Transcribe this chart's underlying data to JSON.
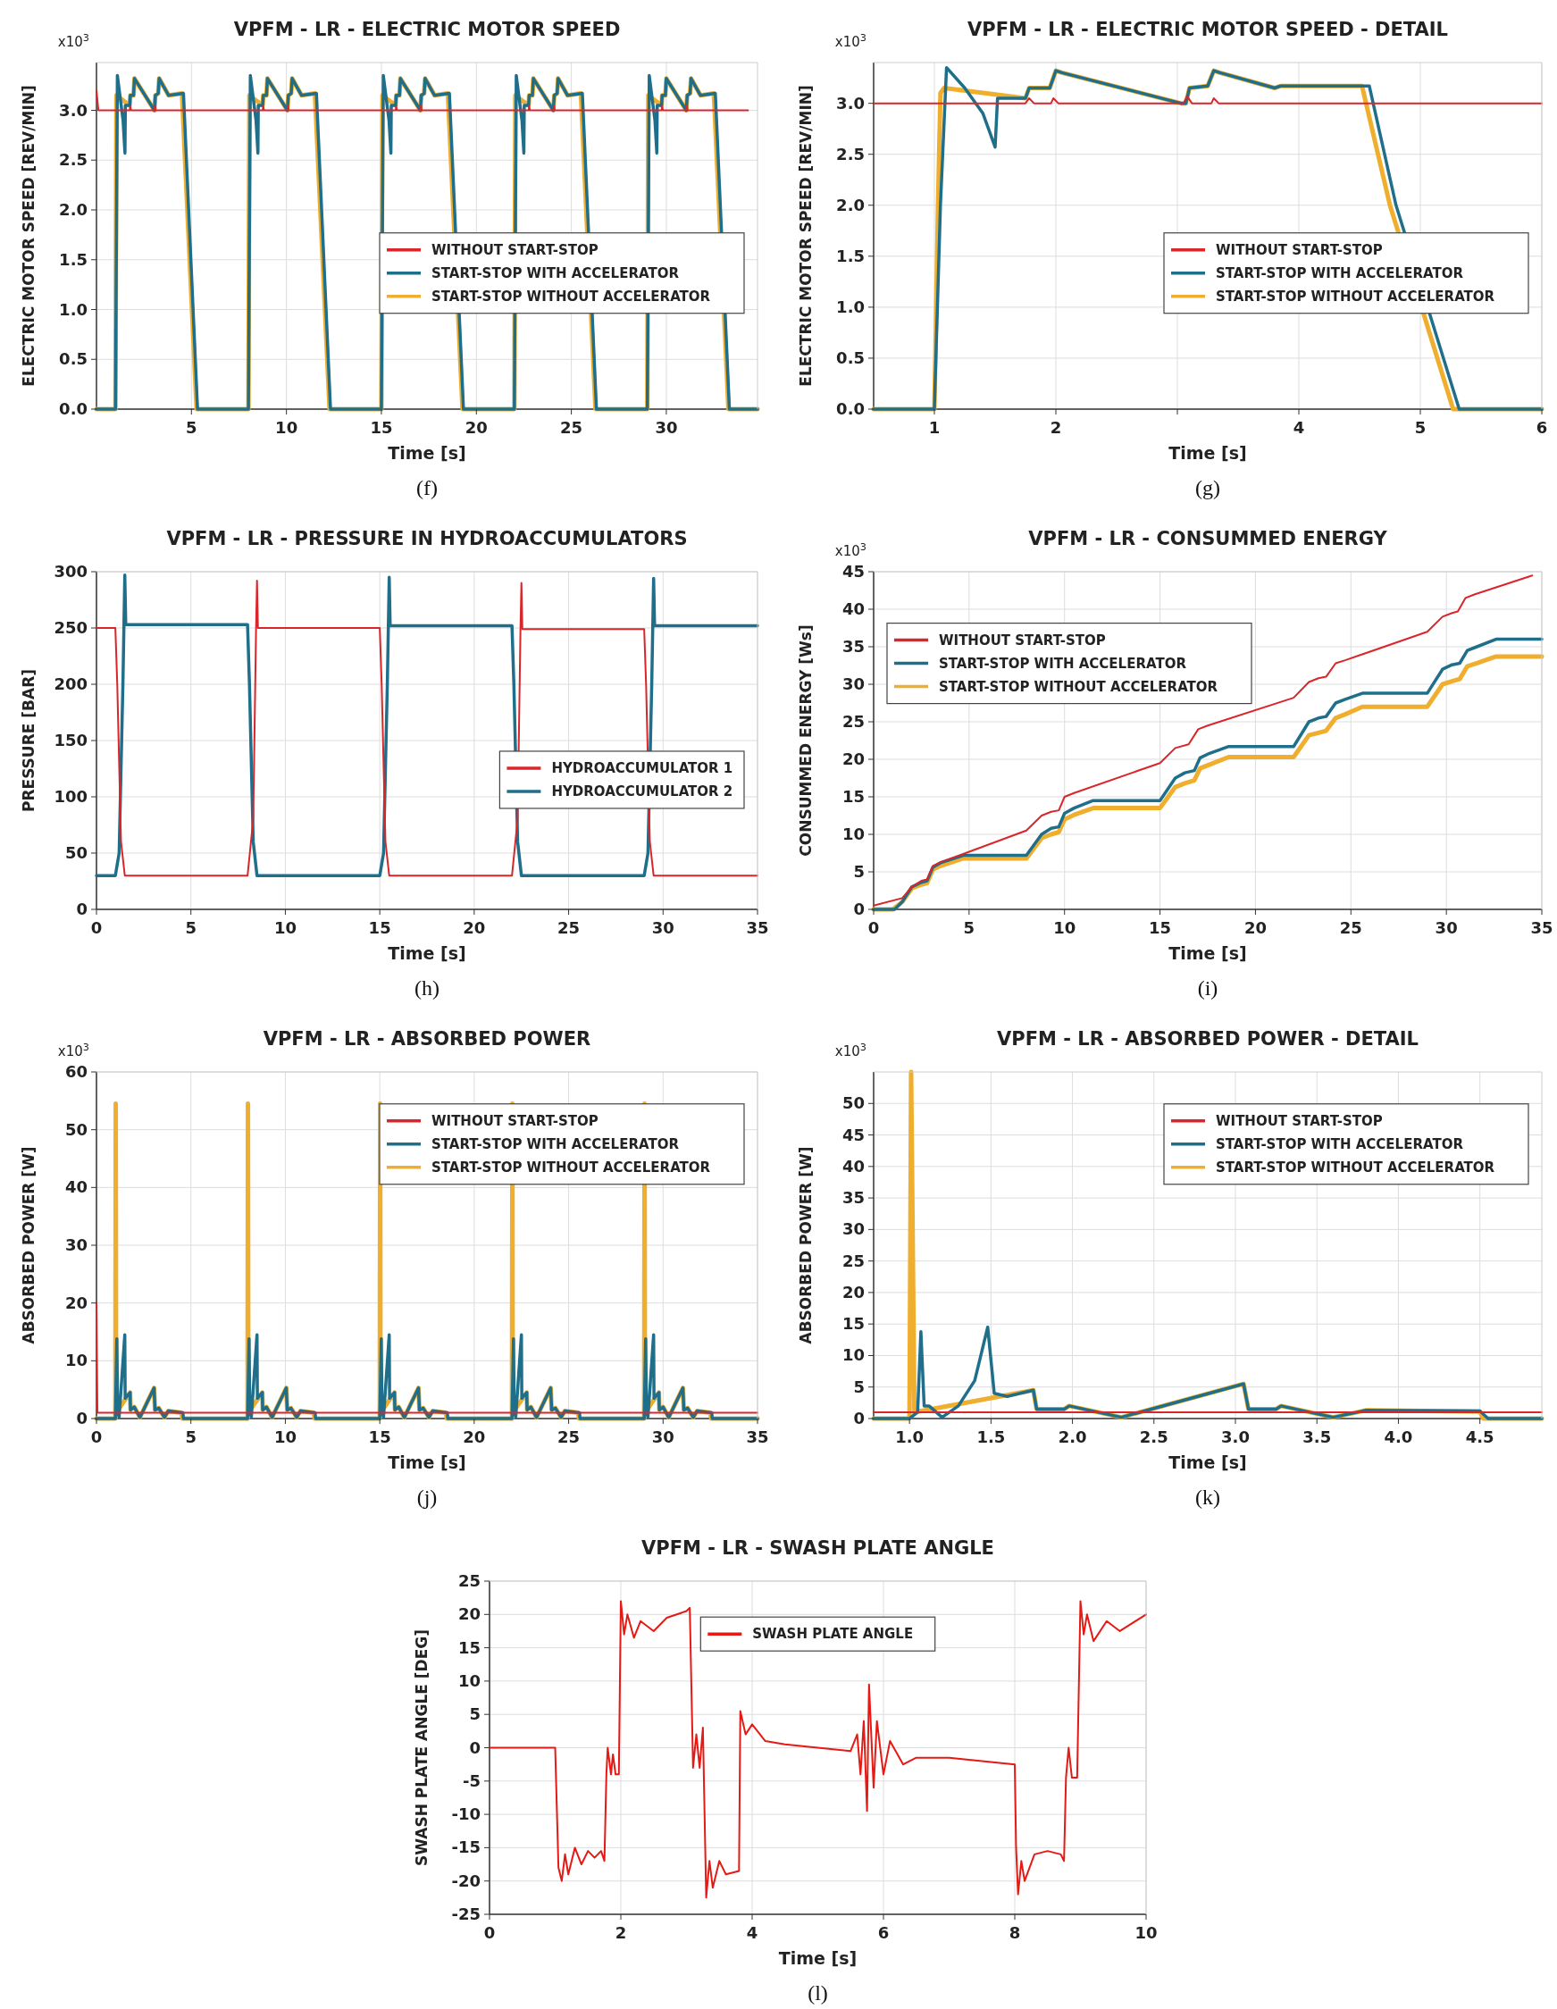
{
  "chart_data": [
    {
      "type": "line",
      "title": "VPFM - LR - ELECTRIC MOTOR SPEED",
      "xlabel": "Time [s]",
      "ylabel": "ELECTRIC MOTOR SPEED [REV/MIN]",
      "annotations": [
        "x10$^{3}$",
        "(f)"
      ],
      "xlim": [
        0,
        34.8
      ],
      "xticks": [
        5,
        10,
        15,
        20,
        25,
        30
      ],
      "ylim": [
        0,
        3.48
      ],
      "yticks": [
        {
          "value": 0,
          "label": "0.0"
        },
        {
          "value": 0.5,
          "label": "0.5"
        },
        {
          "value": 1,
          "label": "1.0"
        },
        {
          "value": 1.5,
          "label": "1.5"
        },
        {
          "value": 2,
          "label": "2.0"
        },
        {
          "value": 2.5,
          "label": "2.5"
        },
        {
          "value": 3,
          "label": "3.0"
        }
      ],
      "grid": true,
      "legend": "right",
      "series": [
        {
          "name": "WITHOUT START-STOP",
          "color": "#d9262b",
          "x": [
            0,
            0.1,
            1.75,
            1.78,
            1.82,
            3.05,
            3.08,
            3.12,
            8.75,
            8.78,
            8.82,
            10.05,
            10.08,
            10.12,
            15.75,
            15.78,
            15.82,
            17.05,
            17.08,
            17.12,
            22.75,
            22.78,
            22.82,
            24.05,
            24.08,
            24.12,
            29.75,
            29.78,
            29.82,
            31.05,
            31.08,
            31.12,
            34.3
          ],
          "values": [
            3.2,
            3,
            3,
            3.04,
            3,
            3,
            3.05,
            3,
            3,
            3.04,
            3,
            3,
            3.05,
            3,
            3,
            3.04,
            3,
            3,
            3.05,
            3,
            3,
            3.04,
            3,
            3,
            3.05,
            3,
            3,
            3.04,
            3,
            3,
            3.05,
            3,
            3
          ]
        },
        {
          "name": "START-STOP WITH ACCELERATOR",
          "color": "#1f6f8b",
          "x": [
            0,
            1,
            1.1,
            1.4,
            1.5,
            1.52,
            1.75,
            1.78,
            1.95,
            2,
            3.05,
            3.1,
            3.25,
            3.3,
            3.8,
            4.58,
            5.32,
            8,
            8.1,
            8.4,
            8.5,
            8.52,
            8.75,
            8.78,
            8.95,
            9,
            10.05,
            10.1,
            10.25,
            10.3,
            10.8,
            11.58,
            12.32,
            15,
            15.1,
            15.4,
            15.5,
            15.52,
            15.75,
            15.78,
            15.95,
            16,
            17.05,
            17.1,
            17.25,
            17.3,
            17.8,
            18.58,
            19.32,
            22,
            22.1,
            22.4,
            22.5,
            22.52,
            22.75,
            22.78,
            22.95,
            23,
            24.05,
            24.1,
            24.25,
            24.3,
            24.8,
            25.58,
            26.32,
            29,
            29.1,
            29.4,
            29.5,
            29.52,
            29.75,
            29.78,
            29.95,
            30,
            31.05,
            31.1,
            31.25,
            31.3,
            31.8,
            32.58,
            33.32,
            34.8
          ],
          "values": [
            0,
            0,
            3.35,
            2.9,
            2.57,
            3.05,
            3.05,
            3.15,
            3.15,
            3.32,
            3,
            3.15,
            3.17,
            3.32,
            3.15,
            3.17,
            0,
            0,
            3.35,
            2.9,
            2.57,
            3.05,
            3.05,
            3.15,
            3.15,
            3.32,
            3,
            3.15,
            3.17,
            3.32,
            3.15,
            3.17,
            0,
            0,
            3.35,
            2.9,
            2.57,
            3.05,
            3.05,
            3.15,
            3.15,
            3.32,
            3,
            3.15,
            3.17,
            3.32,
            3.15,
            3.17,
            0,
            0,
            3.35,
            2.9,
            2.57,
            3.05,
            3.05,
            3.15,
            3.15,
            3.32,
            3,
            3.15,
            3.17,
            3.32,
            3.15,
            3.17,
            0,
            0,
            3.35,
            2.9,
            2.57,
            3.05,
            3.05,
            3.15,
            3.15,
            3.32,
            3,
            3.15,
            3.17,
            3.32,
            3.15,
            3.17,
            0,
            0
          ]
        },
        {
          "name": "START-STOP WITHOUT ACCELERATOR",
          "color": "#f0ae2e",
          "x": [
            0,
            1,
            1.05,
            1.75,
            1.78,
            1.95,
            2,
            3.05,
            3.1,
            3.25,
            3.3,
            3.8,
            4.5,
            5.27,
            8,
            8.05,
            8.75,
            8.78,
            8.95,
            9,
            10.05,
            10.1,
            10.25,
            10.3,
            10.8,
            11.5,
            12.27,
            15,
            15.05,
            15.75,
            15.78,
            15.95,
            16,
            17.05,
            17.1,
            17.25,
            17.3,
            17.8,
            18.5,
            19.27,
            22,
            22.05,
            22.75,
            22.78,
            22.95,
            23,
            24.05,
            24.1,
            24.25,
            24.3,
            24.8,
            25.5,
            26.27,
            29,
            29.05,
            29.75,
            29.78,
            29.95,
            30,
            31.05,
            31.1,
            31.25,
            31.3,
            31.8,
            32.5,
            33.27,
            34.8
          ],
          "values": [
            0,
            0,
            3.15,
            3.05,
            3.15,
            3.15,
            3.32,
            3,
            3.15,
            3.17,
            3.32,
            3.15,
            3.17,
            0,
            0,
            3.15,
            3.05,
            3.15,
            3.15,
            3.32,
            3,
            3.15,
            3.17,
            3.32,
            3.15,
            3.17,
            0,
            0,
            3.15,
            3.05,
            3.15,
            3.15,
            3.32,
            3,
            3.15,
            3.17,
            3.32,
            3.15,
            3.17,
            0,
            0,
            3.15,
            3.05,
            3.15,
            3.15,
            3.32,
            3,
            3.15,
            3.17,
            3.32,
            3.15,
            3.17,
            0,
            0,
            3.15,
            3.05,
            3.15,
            3.15,
            3.32,
            3,
            3.15,
            3.17,
            3.32,
            3.15,
            3.17,
            0,
            0
          ]
        }
      ]
    },
    {
      "type": "line",
      "title": "VPFM - LR - ELECTRIC MOTOR SPEED - DETAIL",
      "xlabel": "Time [s]",
      "ylabel": "ELECTRIC MOTOR SPEED [REV/MIN]",
      "annotations": [
        "x10$^{3}$",
        "(g)"
      ],
      "xlim": [
        0.5,
        6
      ],
      "xticks": [
        1,
        2,
        {
          "value": 3,
          "label": null
        },
        4,
        5,
        6
      ],
      "ylim": [
        0,
        3.4
      ],
      "yticks": [
        {
          "value": 0,
          "label": "0.0"
        },
        {
          "value": 0.5,
          "label": "0.5"
        },
        {
          "value": 1,
          "label": "1.0"
        },
        {
          "value": 1.5,
          "label": "1.5"
        },
        {
          "value": 2,
          "label": "2.0"
        },
        {
          "value": 2.5,
          "label": "2.5"
        },
        {
          "value": 3,
          "label": "3.0"
        }
      ],
      "grid": true,
      "legend": "right",
      "series": [
        {
          "name": "WITHOUT START-STOP",
          "color": "#d9262b",
          "x": [
            0.5,
            1.75,
            1.78,
            1.82,
            1.96,
            1.98,
            2.02,
            3.05,
            3.08,
            3.12,
            3.28,
            3.3,
            3.34,
            6
          ],
          "values": [
            3,
            3,
            3.05,
            3,
            3,
            3.05,
            3,
            3,
            3.07,
            3,
            3,
            3.05,
            3,
            3
          ]
        },
        {
          "name": "START-STOP WITH ACCELERATOR",
          "color": "#1f6f8b",
          "x": [
            0.5,
            1,
            1.05,
            1.1,
            1.25,
            1.4,
            1.5,
            1.52,
            1.75,
            1.78,
            1.95,
            2,
            2.05,
            3.03,
            3.07,
            3.1,
            3.25,
            3.3,
            3.35,
            3.8,
            3.85,
            4.58,
            4.8,
            5.32,
            6
          ],
          "values": [
            0,
            0,
            2,
            3.35,
            3.15,
            2.9,
            2.57,
            3.05,
            3.05,
            3.15,
            3.15,
            3.32,
            3.3,
            3,
            3,
            3.15,
            3.17,
            3.32,
            3.3,
            3.15,
            3.17,
            3.17,
            2,
            0,
            0
          ]
        },
        {
          "name": "START-STOP WITHOUT ACCELERATOR",
          "color": "#f0ae2e",
          "x": [
            0.5,
            1,
            1.03,
            1.05,
            1.08,
            1.75,
            1.78,
            1.95,
            2,
            2.05,
            3.03,
            3.07,
            3.1,
            3.25,
            3.3,
            3.35,
            3.8,
            3.85,
            4.52,
            4.75,
            5.27,
            6
          ],
          "values": [
            0,
            0,
            2,
            3.1,
            3.15,
            3.05,
            3.15,
            3.15,
            3.32,
            3.3,
            3,
            3,
            3.15,
            3.17,
            3.32,
            3.3,
            3.15,
            3.17,
            3.17,
            2,
            0,
            0
          ]
        }
      ]
    },
    {
      "type": "line",
      "title": "VPFM - LR - PRESSURE IN HYDROACCUMULATORS",
      "xlabel": "Time [s]",
      "ylabel": "PRESSURE [BAR]",
      "annotations": [
        "(h)"
      ],
      "xlim": [
        0,
        35
      ],
      "xticks": [
        0,
        5,
        10,
        15,
        20,
        25,
        30,
        35
      ],
      "ylim": [
        0,
        300
      ],
      "yticks": [
        0,
        50,
        100,
        150,
        200,
        250,
        300
      ],
      "grid": true,
      "legend": "right",
      "series": [
        {
          "name": "HYDROACCUMULATOR 1",
          "color": "#d9262b",
          "x": [
            0,
            1,
            1.1,
            1.3,
            1.5,
            8,
            8.3,
            8.45,
            8.5,
            8.55,
            15,
            15.1,
            15.3,
            15.5,
            22,
            22.3,
            22.45,
            22.5,
            22.55,
            29,
            29.1,
            29.3,
            29.5,
            35
          ],
          "values": [
            250,
            250,
            200,
            60,
            30,
            30,
            80,
            250,
            292,
            250,
            250,
            200,
            60,
            30,
            30,
            80,
            249,
            290,
            249,
            249,
            200,
            60,
            30,
            30
          ]
        },
        {
          "name": "HYDROACCUMULATOR 2",
          "color": "#1f6f8b",
          "x": [
            0,
            1,
            1.2,
            1.4,
            1.5,
            1.55,
            8,
            8.1,
            8.3,
            8.5,
            15,
            15.2,
            15.4,
            15.5,
            15.55,
            22,
            22.1,
            22.3,
            22.5,
            29,
            29.2,
            29.4,
            29.5,
            29.55,
            35
          ],
          "values": [
            30,
            30,
            50,
            200,
            297,
            253,
            253,
            200,
            60,
            30,
            30,
            50,
            200,
            295,
            252,
            252,
            200,
            60,
            30,
            30,
            50,
            200,
            294,
            252,
            252
          ]
        }
      ]
    },
    {
      "type": "line",
      "title": "VPFM - LR - CONSUMMED ENERGY",
      "xlabel": "Time [s]",
      "ylabel": "CONSUMMED ENERGY [Ws]",
      "annotations": [
        "x10$^{3}$",
        "(i)"
      ],
      "xlim": [
        0,
        35
      ],
      "xticks": [
        0,
        5,
        10,
        15,
        20,
        25,
        30,
        35
      ],
      "ylim": [
        0,
        45
      ],
      "yticks": [
        0,
        5,
        10,
        15,
        20,
        25,
        30,
        35,
        40,
        45
      ],
      "grid": true,
      "legend": "top left",
      "series": [
        {
          "name": "WITHOUT START-STOP",
          "color": "#d9262b",
          "x": [
            0,
            1.5,
            2,
            2.5,
            2.8,
            3.1,
            3.5,
            4.5,
            8,
            8.8,
            9.3,
            9.7,
            10,
            10.5,
            15,
            15.8,
            16.5,
            17,
            17.5,
            22,
            22.8,
            23.3,
            23.7,
            24.2,
            24.7,
            29,
            29.8,
            30.3,
            30.6,
            31,
            31.5,
            34.5
          ],
          "values": [
            0.5,
            1.5,
            3,
            3.8,
            4,
            5.8,
            6.3,
            7.2,
            10.5,
            12.5,
            13,
            13.2,
            15,
            15.5,
            19.5,
            21.5,
            22,
            24,
            24.5,
            28.2,
            30.3,
            30.8,
            31,
            32.8,
            33.2,
            37,
            39,
            39.5,
            39.7,
            41.5,
            42,
            44.5
          ]
        },
        {
          "name": "START-STOP WITH ACCELERATOR",
          "color": "#1f6f8b",
          "x": [
            0,
            1.1,
            1.5,
            2,
            2.5,
            2.8,
            3.1,
            3.5,
            4.7,
            8,
            8.8,
            9.3,
            9.7,
            10,
            10.5,
            11.5,
            15,
            15.8,
            16.3,
            16.8,
            17.1,
            17.6,
            18.6,
            22,
            22.8,
            23.3,
            23.7,
            24.2,
            24.7,
            25.6,
            29,
            29.8,
            30.3,
            30.7,
            31.1,
            31.6,
            32.6,
            35
          ],
          "values": [
            0,
            0,
            1,
            3,
            3.6,
            3.8,
            5.6,
            6.2,
            7.2,
            7.2,
            10,
            10.8,
            11,
            12.8,
            13.5,
            14.5,
            14.5,
            17.5,
            18.2,
            18.5,
            20.2,
            20.8,
            21.7,
            21.7,
            25,
            25.5,
            25.7,
            27.5,
            28,
            28.8,
            28.8,
            32,
            32.6,
            32.8,
            34.5,
            35,
            36,
            36
          ]
        },
        {
          "name": "START-STOP WITHOUT ACCELERATOR",
          "color": "#f0ae2e",
          "x": [
            0,
            1,
            1.5,
            2,
            2.5,
            2.8,
            3.1,
            3.5,
            4.7,
            8,
            8.8,
            9.3,
            9.7,
            10,
            10.5,
            11.5,
            15,
            15.8,
            16.3,
            16.8,
            17.1,
            17.6,
            18.6,
            22,
            22.8,
            23.7,
            24.2,
            24.7,
            25.6,
            29,
            29.8,
            30.3,
            30.7,
            31.1,
            31.6,
            32.6,
            35
          ],
          "values": [
            0,
            0,
            1,
            2.8,
            3.3,
            3.5,
            5.3,
            5.8,
            6.8,
            6.8,
            9.5,
            10,
            10.3,
            12,
            12.6,
            13.5,
            13.5,
            16.3,
            16.8,
            17.2,
            18.8,
            19.3,
            20.3,
            20.3,
            23.2,
            23.8,
            25.5,
            26,
            27,
            27,
            30,
            30.4,
            30.7,
            32.4,
            32.8,
            33.7,
            33.7
          ]
        }
      ]
    },
    {
      "type": "line",
      "title": "VPFM - LR - ABSORBED POWER",
      "xlabel": "Time [s]",
      "ylabel": "ABSORBED POWER [W]",
      "annotations": [
        "x10$^{3}$",
        "(j)"
      ],
      "xlim": [
        0,
        35
      ],
      "xticks": [
        0,
        5,
        10,
        15,
        20,
        25,
        30,
        35
      ],
      "ylim": [
        0,
        60
      ],
      "yticks": [
        0,
        10,
        20,
        30,
        40,
        50,
        60
      ],
      "grid": true,
      "legend": "top right",
      "series": [
        {
          "name": "WITHOUT START-STOP",
          "color": "#d9262b",
          "x": [
            0,
            0.05,
            35
          ],
          "values": [
            20,
            1,
            1
          ]
        },
        {
          "name": "START-STOP WITH ACCELERATOR",
          "color": "#1f6f8b",
          "x": [
            0,
            1,
            1.08,
            1.12,
            1.2,
            1.5,
            1.52,
            1.78,
            1.8,
            2,
            2.3,
            3.05,
            3.1,
            3.3,
            3.6,
            3.8,
            4.58,
            4.6,
            8,
            8.08,
            8.12,
            8.2,
            8.5,
            8.52,
            8.78,
            8.8,
            9,
            9.3,
            10.05,
            10.1,
            10.3,
            10.6,
            10.8,
            11.58,
            11.6,
            15,
            15.08,
            15.12,
            15.2,
            15.5,
            15.52,
            15.78,
            15.8,
            16,
            16.3,
            17.05,
            17.1,
            17.3,
            17.6,
            17.8,
            18.58,
            18.6,
            22,
            22.08,
            22.12,
            22.2,
            22.5,
            22.52,
            22.78,
            22.8,
            23,
            23.3,
            24.05,
            24.1,
            24.3,
            24.6,
            24.8,
            25.58,
            25.6,
            29,
            29.08,
            29.12,
            29.2,
            29.5,
            29.52,
            29.78,
            29.8,
            30,
            30.3,
            31.05,
            31.1,
            31.3,
            31.6,
            31.8,
            32.58,
            32.6,
            35
          ],
          "values": [
            0,
            0,
            13.8,
            1,
            0.3,
            14.5,
            3.5,
            4.5,
            1.5,
            2,
            0.2,
            5.3,
            1.5,
            1.8,
            0.2,
            1.3,
            1,
            0,
            0,
            13.8,
            1,
            0.3,
            14.5,
            3.5,
            4.5,
            1.5,
            2,
            0.2,
            5.3,
            1.5,
            1.8,
            0.2,
            1.3,
            1,
            0,
            0,
            13.8,
            1,
            0.3,
            14.5,
            3.5,
            4.5,
            1.5,
            2,
            0.2,
            5.3,
            1.5,
            1.8,
            0.2,
            1.3,
            1,
            0,
            0,
            13.8,
            1,
            0.3,
            14.5,
            3.5,
            4.5,
            1.5,
            2,
            0.2,
            5.3,
            1.5,
            1.8,
            0.2,
            1.3,
            1,
            0,
            0,
            13.8,
            1,
            0.3,
            14.5,
            3.5,
            4.5,
            1.5,
            2,
            0.2,
            5.3,
            1.5,
            1.8,
            0.2,
            1.3,
            1,
            0,
            0
          ]
        },
        {
          "name": "START-STOP WITHOUT ACCELERATOR",
          "color": "#f0ae2e",
          "x": [
            0,
            1,
            1.02,
            1.04,
            1.78,
            1.8,
            2,
            2.3,
            3.05,
            3.1,
            3.3,
            3.6,
            3.8,
            4.5,
            4.55,
            8,
            8.02,
            8.04,
            8.78,
            8.8,
            9,
            9.3,
            10.05,
            10.1,
            10.3,
            10.6,
            10.8,
            11.5,
            11.55,
            15,
            15.02,
            15.04,
            15.78,
            15.8,
            16,
            16.3,
            17.05,
            17.1,
            17.3,
            17.6,
            17.8,
            18.5,
            18.55,
            22,
            22.02,
            22.04,
            22.78,
            22.8,
            23,
            23.3,
            24.05,
            24.1,
            24.3,
            24.6,
            24.8,
            25.5,
            25.55,
            29,
            29.02,
            29.04,
            29.78,
            29.8,
            30,
            30.3,
            31.05,
            31.1,
            31.3,
            31.6,
            31.8,
            32.5,
            32.55,
            35
          ],
          "values": [
            0,
            0,
            54.5,
            1,
            4.5,
            1.5,
            2,
            0.2,
            5.3,
            1.5,
            1.8,
            0.2,
            1.3,
            1,
            0,
            0,
            54.5,
            1,
            4.5,
            1.5,
            2,
            0.2,
            5.3,
            1.5,
            1.8,
            0.2,
            1.3,
            1,
            0,
            0,
            54.5,
            1,
            4.5,
            1.5,
            2,
            0.2,
            5.3,
            1.5,
            1.8,
            0.2,
            1.3,
            1,
            0,
            0,
            54.5,
            1,
            4.5,
            1.5,
            2,
            0.2,
            5.3,
            1.5,
            1.8,
            0.2,
            1.3,
            1,
            0,
            0,
            54.5,
            1,
            4.5,
            1.5,
            2,
            0.2,
            5.3,
            1.5,
            1.8,
            0.2,
            1.3,
            1,
            0,
            0
          ]
        }
      ]
    },
    {
      "type": "line",
      "title": "VPFM - LR - ABSORBED POWER - DETAIL",
      "xlabel": "Time [s]",
      "ylabel": "ABSORBED POWER [W]",
      "annotations": [
        "x10$^{3}$",
        "(k)"
      ],
      "xlim": [
        0.78,
        4.88
      ],
      "xticks": [
        {
          "value": 1,
          "label": "1.0"
        },
        {
          "value": 1.5,
          "label": "1.5"
        },
        {
          "value": 2,
          "label": "2.0"
        },
        {
          "value": 2.5,
          "label": "2.5"
        },
        {
          "value": 3,
          "label": "3.0"
        },
        {
          "value": 3.5,
          "label": "3.5"
        },
        {
          "value": 4,
          "label": "4.0"
        },
        {
          "value": 4.5,
          "label": "4.5"
        }
      ],
      "ylim": [
        0,
        55
      ],
      "yticks": [
        0,
        5,
        10,
        15,
        20,
        25,
        30,
        35,
        40,
        45,
        50
      ],
      "grid": true,
      "legend": "top right",
      "series": [
        {
          "name": "WITHOUT START-STOP",
          "color": "#d9262b",
          "x": [
            0.78,
            4.88
          ],
          "values": [
            1,
            1
          ]
        },
        {
          "name": "START-STOP WITH ACCELERATOR",
          "color": "#1f6f8b",
          "x": [
            0.78,
            1,
            1.05,
            1.07,
            1.09,
            1.12,
            1.2,
            1.3,
            1.4,
            1.48,
            1.52,
            1.6,
            1.76,
            1.78,
            1.95,
            1.98,
            2.3,
            3.05,
            3.08,
            3.25,
            3.28,
            3.6,
            3.8,
            4.5,
            4.55,
            4.88
          ],
          "values": [
            0,
            0,
            1,
            13.8,
            2,
            2,
            0.2,
            2,
            6,
            14.5,
            4,
            3.5,
            4.5,
            1.5,
            1.5,
            2,
            0.2,
            5.5,
            1.5,
            1.5,
            2,
            0.2,
            1.3,
            1.2,
            0,
            0
          ]
        },
        {
          "name": "START-STOP WITHOUT ACCELERATOR",
          "color": "#f0ae2e",
          "x": [
            0.78,
            1,
            1.01,
            1.03,
            1.76,
            1.78,
            1.95,
            1.98,
            2.3,
            3.05,
            3.08,
            3.25,
            3.28,
            3.6,
            3.8,
            4.5,
            4.52,
            4.88
          ],
          "values": [
            0,
            0,
            55,
            1,
            4.5,
            1.5,
            1.5,
            2,
            0.2,
            5.5,
            1.5,
            1.5,
            2,
            0.2,
            1.3,
            1.1,
            0,
            0
          ]
        }
      ]
    },
    {
      "type": "line",
      "title": "VPFM - LR - SWASH PLATE ANGLE",
      "xlabel": "Time [s]",
      "ylabel": "SWASH PLATE ANGLE [DEG]",
      "annotations": [
        "(l)"
      ],
      "xlim": [
        0,
        10
      ],
      "xticks": [
        0,
        2,
        4,
        6,
        8,
        10
      ],
      "ylim": [
        -25,
        25
      ],
      "yticks": [
        -25,
        -20,
        -15,
        -10,
        -5,
        0,
        5,
        10,
        15,
        20,
        25
      ],
      "grid": true,
      "legend": "top",
      "series": [
        {
          "name": "SWASH PLATE ANGLE",
          "color": "#e51a14",
          "x": [
            0,
            1,
            1.05,
            1.1,
            1.15,
            1.2,
            1.3,
            1.4,
            1.5,
            1.6,
            1.7,
            1.75,
            1.78,
            1.8,
            1.85,
            1.88,
            1.92,
            1.97,
            2,
            2.05,
            2.1,
            2.2,
            2.3,
            2.5,
            2.7,
            3,
            3.05,
            3.1,
            3.15,
            3.2,
            3.25,
            3.3,
            3.35,
            3.4,
            3.5,
            3.6,
            3.8,
            3.82,
            3.9,
            4,
            4.2,
            4.5,
            5,
            5.5,
            5.6,
            5.65,
            5.7,
            5.75,
            5.78,
            5.85,
            5.9,
            6,
            6.1,
            6.3,
            6.5,
            7,
            8,
            8.02,
            8.05,
            8.1,
            8.15,
            8.3,
            8.5,
            8.7,
            8.75,
            8.78,
            8.82,
            8.87,
            8.95,
            9,
            9.05,
            9.1,
            9.2,
            9.4,
            9.6,
            10
          ],
          "values": [
            0,
            0,
            -18,
            -20,
            -16,
            -19,
            -15,
            -17.5,
            -15.5,
            -16.5,
            -15.5,
            -17,
            -4,
            0,
            -4,
            -1,
            -4,
            -4,
            22,
            17,
            20,
            16.5,
            19,
            17.5,
            19.5,
            20.5,
            21,
            -3,
            2,
            -3,
            3,
            -22.5,
            -17,
            -21,
            -17,
            -19,
            -18.5,
            5.5,
            2,
            3.5,
            1,
            0.5,
            0,
            -0.5,
            2,
            -4,
            4,
            -9.5,
            9.5,
            -6,
            4,
            -4,
            1,
            -2.5,
            -1.5,
            -1.5,
            -2.5,
            -15,
            -22,
            -17,
            -20,
            -16,
            -15.5,
            -16,
            -17,
            -4.5,
            0,
            -4.5,
            -4.5,
            22,
            17,
            20,
            16,
            19,
            17.5,
            20
          ]
        }
      ]
    }
  ]
}
